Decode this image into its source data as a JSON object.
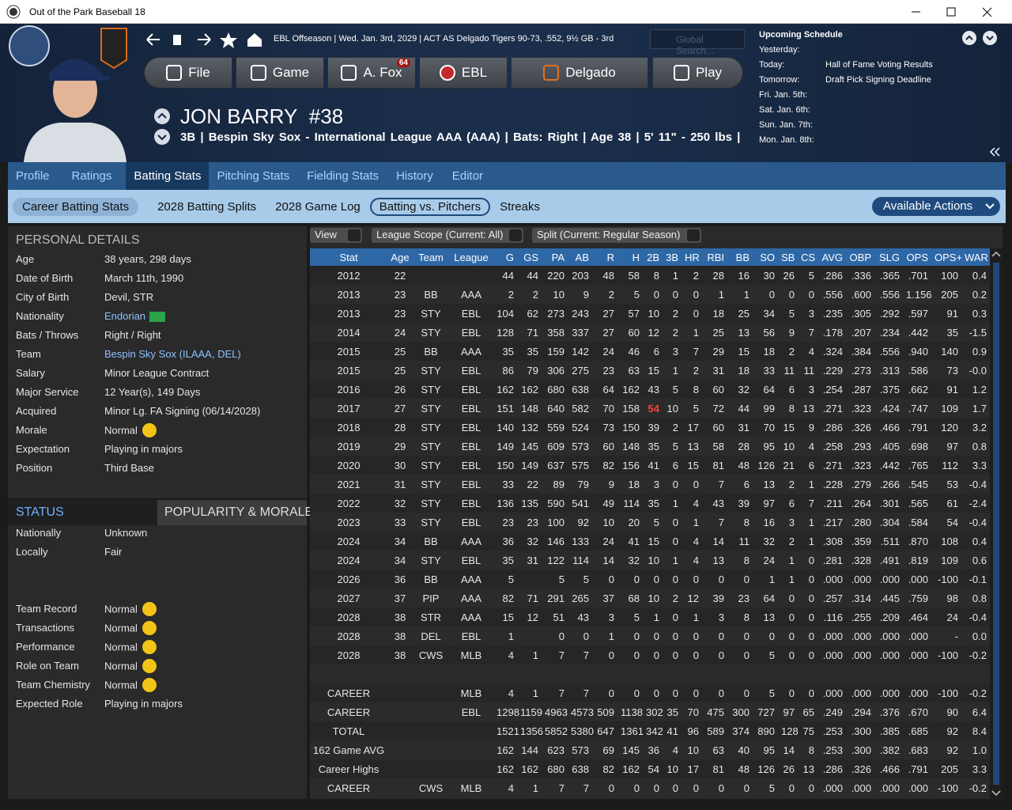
{
  "window": {
    "title": "Out of the Park Baseball 18"
  },
  "header": {
    "status": "EBL Offseason | Wed. Jan. 3rd, 2029 | ACT AS Delgado Tigers 90-73, .552, 9½ GB - 3rd",
    "search_placeholder": "Global Search...",
    "nav": [
      "File",
      "Game",
      "A. Fox",
      "EBL",
      "Delgado",
      "Play"
    ],
    "badge": "64"
  },
  "player": {
    "name": "JON BARRY",
    "number": "#38",
    "info": "3B | Bespin Sky Sox - International League AAA (AAA) | Bats: Right | Age 38 | 5' 11\" - 250 lbs |"
  },
  "schedule": {
    "title": "Upcoming Schedule",
    "rows": [
      {
        "day": "Yesterday:",
        "event": null
      },
      {
        "day": "Today:",
        "event": "Hall of Fame Voting Results"
      },
      {
        "day": "Tomorrow:",
        "event": "Draft Pick Signing Deadline"
      },
      {
        "day": "Fri. Jan. 5th:",
        "event": null
      },
      {
        "day": "Sat. Jan. 6th:",
        "event": null
      },
      {
        "day": "Sun. Jan. 7th:",
        "event": null
      },
      {
        "day": "Mon. Jan. 8th:",
        "event": null
      }
    ]
  },
  "tabs": [
    "Profile",
    "Ratings",
    "Batting Stats",
    "Pitching Stats",
    "Fielding Stats",
    "History",
    "Editor"
  ],
  "subtabs": [
    "Career Batting Stats",
    "2028 Batting Splits",
    "2028 Game Log",
    "Batting vs. Pitchers",
    "Streaks"
  ],
  "actions": "Available Actions",
  "personal_details": {
    "title": "PERSONAL DETAILS",
    "rows": [
      {
        "label": "Age",
        "value": "38 years, 298 days"
      },
      {
        "label": "Date of Birth",
        "value": "March 11th, 1990"
      },
      {
        "label": "City of Birth",
        "value": "Devil, STR"
      },
      {
        "label": "Nationality",
        "value": "Endorian"
      },
      {
        "label": "Bats / Throws",
        "value": "Right / Right"
      },
      {
        "label": "Team",
        "value": "Bespin Sky Sox (ILAAA, DEL)"
      },
      {
        "label": "Salary",
        "value": "Minor League Contract"
      },
      {
        "label": "Major Service",
        "value": "12 Year(s), 149 Days"
      },
      {
        "label": "Acquired",
        "value": "Minor Lg. FA Signing (06/14/2028)"
      },
      {
        "label": "Morale",
        "value": "Normal"
      },
      {
        "label": "Expectation",
        "value": "Playing in majors"
      },
      {
        "label": "Position",
        "value": "Third Base"
      }
    ]
  },
  "status": {
    "title": "STATUS",
    "alt_title": "POPULARITY & MORALE",
    "rows": [
      {
        "label": "Nationally",
        "value": "Unknown"
      },
      {
        "label": "Locally",
        "value": "Fair"
      },
      {
        "label": "Team Record",
        "value": "Normal"
      },
      {
        "label": "Transactions",
        "value": "Normal"
      },
      {
        "label": "Performance",
        "value": "Normal"
      },
      {
        "label": "Role on Team",
        "value": "Normal"
      },
      {
        "label": "Team Chemistry",
        "value": "Normal"
      },
      {
        "label": "Expected Role",
        "value": "Playing in majors"
      }
    ]
  },
  "filters": [
    "View",
    "League Scope (Current: All)",
    "Split (Current: Regular Season)"
  ],
  "table": {
    "columns": [
      "Stat",
      "Age",
      "Team",
      "League",
      "G",
      "GS",
      "PA",
      "AB",
      "R",
      "H",
      "2B",
      "3B",
      "HR",
      "RBI",
      "BB",
      "SO",
      "SB",
      "CS",
      "AVG",
      "OBP",
      "SLG",
      "OPS",
      "OPS+",
      "WAR"
    ],
    "rows": [
      [
        "2012",
        "22",
        null,
        null,
        "44",
        "44",
        "220",
        "203",
        "48",
        "58",
        "8",
        "1",
        "2",
        "28",
        "16",
        "30",
        "26",
        "5",
        ".286",
        ".336",
        ".365",
        ".701",
        "100",
        "0.4"
      ],
      [
        "2013",
        "23",
        "BB",
        "AAA",
        "2",
        "2",
        "10",
        "9",
        "2",
        "5",
        "0",
        "0",
        "0",
        "1",
        "1",
        "0",
        "0",
        "0",
        ".556",
        ".600",
        ".556",
        "1.156",
        "205",
        "0.2"
      ],
      [
        "2013",
        "23",
        "STY",
        "EBL",
        "104",
        "62",
        "273",
        "243",
        "27",
        "57",
        "10",
        "2",
        "0",
        "18",
        "25",
        "34",
        "5",
        "3",
        ".235",
        ".305",
        ".292",
        ".597",
        "91",
        "0.3"
      ],
      [
        "2014",
        "24",
        "STY",
        "EBL",
        "128",
        "71",
        "358",
        "337",
        "27",
        "60",
        "12",
        "2",
        "1",
        "25",
        "13",
        "56",
        "9",
        "7",
        ".178",
        ".207",
        ".234",
        ".442",
        "35",
        "-1.5"
      ],
      [
        "2015",
        "25",
        "BB",
        "AAA",
        "35",
        "35",
        "159",
        "142",
        "24",
        "46",
        "6",
        "3",
        "7",
        "29",
        "15",
        "18",
        "2",
        "4",
        ".324",
        ".384",
        ".556",
        ".940",
        "140",
        "0.9"
      ],
      [
        "2015",
        "25",
        "STY",
        "EBL",
        "86",
        "79",
        "306",
        "275",
        "23",
        "63",
        "15",
        "1",
        "2",
        "31",
        "18",
        "33",
        "11",
        "11",
        ".229",
        ".273",
        ".313",
        ".586",
        "73",
        "-0.0"
      ],
      [
        "2016",
        "26",
        "STY",
        "EBL",
        "162",
        "162",
        "680",
        "638",
        "64",
        "162",
        "43",
        "5",
        "8",
        "60",
        "32",
        "64",
        "6",
        "3",
        ".254",
        ".287",
        ".375",
        ".662",
        "91",
        "1.2"
      ],
      [
        "2017",
        "27",
        "STY",
        "EBL",
        "151",
        "148",
        "640",
        "582",
        "70",
        "158",
        "54",
        "10",
        "5",
        "72",
        "44",
        "99",
        "8",
        "13",
        ".271",
        ".323",
        ".424",
        ".747",
        "109",
        "1.7"
      ],
      [
        "2018",
        "28",
        "STY",
        "EBL",
        "140",
        "132",
        "559",
        "524",
        "73",
        "150",
        "39",
        "2",
        "17",
        "60",
        "31",
        "70",
        "15",
        "9",
        ".286",
        ".326",
        ".466",
        ".791",
        "120",
        "3.2"
      ],
      [
        "2019",
        "29",
        "STY",
        "EBL",
        "149",
        "145",
        "609",
        "573",
        "60",
        "148",
        "35",
        "5",
        "13",
        "58",
        "28",
        "95",
        "10",
        "4",
        ".258",
        ".293",
        ".405",
        ".698",
        "97",
        "0.8"
      ],
      [
        "2020",
        "30",
        "STY",
        "EBL",
        "150",
        "149",
        "637",
        "575",
        "82",
        "156",
        "41",
        "6",
        "15",
        "81",
        "48",
        "126",
        "21",
        "6",
        ".271",
        ".323",
        ".442",
        ".765",
        "112",
        "3.3"
      ],
      [
        "2021",
        "31",
        "STY",
        "EBL",
        "33",
        "22",
        "89",
        "79",
        "9",
        "18",
        "3",
        "0",
        "0",
        "7",
        "6",
        "13",
        "2",
        "1",
        ".228",
        ".279",
        ".266",
        ".545",
        "53",
        "-0.4"
      ],
      [
        "2022",
        "32",
        "STY",
        "EBL",
        "136",
        "135",
        "590",
        "541",
        "49",
        "114",
        "35",
        "1",
        "4",
        "43",
        "39",
        "97",
        "6",
        "7",
        ".211",
        ".264",
        ".301",
        ".565",
        "61",
        "-2.4"
      ],
      [
        "2023",
        "33",
        "STY",
        "EBL",
        "23",
        "23",
        "100",
        "92",
        "10",
        "20",
        "5",
        "0",
        "1",
        "7",
        "8",
        "16",
        "3",
        "1",
        ".217",
        ".280",
        ".304",
        ".584",
        "54",
        "-0.4"
      ],
      [
        "2024",
        "34",
        "BB",
        "AAA",
        "36",
        "32",
        "146",
        "133",
        "24",
        "41",
        "15",
        "0",
        "4",
        "14",
        "11",
        "32",
        "2",
        "1",
        ".308",
        ".359",
        ".511",
        ".870",
        "108",
        "0.4"
      ],
      [
        "2024",
        "34",
        "STY",
        "EBL",
        "35",
        "31",
        "122",
        "114",
        "14",
        "32",
        "10",
        "1",
        "4",
        "13",
        "8",
        "24",
        "1",
        "0",
        ".281",
        ".328",
        ".491",
        ".819",
        "109",
        "0.6"
      ],
      [
        "2026",
        "36",
        "BB",
        "AAA",
        "5",
        null,
        "5",
        "5",
        "0",
        "0",
        "0",
        "0",
        "0",
        "0",
        "0",
        "1",
        "1",
        "0",
        ".000",
        ".000",
        ".000",
        ".000",
        "-100",
        "-0.1"
      ],
      [
        "2027",
        "37",
        "PIP",
        "AAA",
        "82",
        "71",
        "291",
        "265",
        "37",
        "68",
        "10",
        "2",
        "12",
        "39",
        "23",
        "64",
        "0",
        "0",
        ".257",
        ".314",
        ".445",
        ".759",
        "98",
        "0.8"
      ],
      [
        "2028",
        "38",
        "STR",
        "AAA",
        "15",
        "12",
        "51",
        "43",
        "3",
        "5",
        "1",
        "0",
        "1",
        "3",
        "8",
        "13",
        "0",
        "0",
        ".116",
        ".255",
        ".209",
        ".464",
        "24",
        "-0.4"
      ],
      [
        "2028",
        "38",
        "DEL",
        "EBL",
        "1",
        null,
        "0",
        "0",
        "1",
        "0",
        "0",
        "0",
        "0",
        "0",
        "0",
        "0",
        "0",
        "0",
        ".000",
        ".000",
        ".000",
        ".000",
        "-",
        "0.0"
      ],
      [
        "2028",
        "38",
        "CWS",
        "MLB",
        "4",
        "1",
        "7",
        "7",
        "0",
        "0",
        "0",
        "0",
        "0",
        "0",
        "0",
        "5",
        "0",
        "0",
        ".000",
        ".000",
        ".000",
        ".000",
        "-100",
        "-0.2"
      ]
    ],
    "totals": [
      [
        "CAREER",
        null,
        null,
        "MLB",
        "4",
        "1",
        "7",
        "7",
        "0",
        "0",
        "0",
        "0",
        "0",
        "0",
        "0",
        "5",
        "0",
        "0",
        ".000",
        ".000",
        ".000",
        ".000",
        "-100",
        "-0.2"
      ],
      [
        "CAREER",
        null,
        null,
        "EBL",
        "1298",
        "1159",
        "4963",
        "4573",
        "509",
        "1138",
        "302",
        "35",
        "70",
        "475",
        "300",
        "727",
        "97",
        "65",
        ".249",
        ".294",
        ".376",
        ".670",
        "90",
        "6.4"
      ],
      [
        "TOTAL",
        null,
        null,
        null,
        "1521",
        "1356",
        "5852",
        "5380",
        "647",
        "1361",
        "342",
        "41",
        "96",
        "589",
        "374",
        "890",
        "128",
        "75",
        ".253",
        ".300",
        ".385",
        ".685",
        "92",
        "8.4"
      ],
      [
        "162 Game AVG",
        null,
        null,
        null,
        "162",
        "144",
        "623",
        "573",
        "69",
        "145",
        "36",
        "4",
        "10",
        "63",
        "40",
        "95",
        "14",
        "8",
        ".253",
        ".300",
        ".382",
        ".683",
        "92",
        "1.0"
      ],
      [
        "Career Highs",
        null,
        null,
        null,
        "162",
        "162",
        "680",
        "638",
        "82",
        "162",
        "54",
        "10",
        "17",
        "81",
        "48",
        "126",
        "26",
        "13",
        ".286",
        ".326",
        ".466",
        ".791",
        "205",
        "3.3"
      ],
      [
        "CAREER",
        null,
        "CWS",
        "MLB",
        "4",
        "1",
        "7",
        "7",
        "0",
        "0",
        "0",
        "0",
        "0",
        "0",
        "0",
        "5",
        "0",
        "0",
        ".000",
        ".000",
        ".000",
        ".000",
        "-100",
        "-0.2"
      ]
    ]
  }
}
